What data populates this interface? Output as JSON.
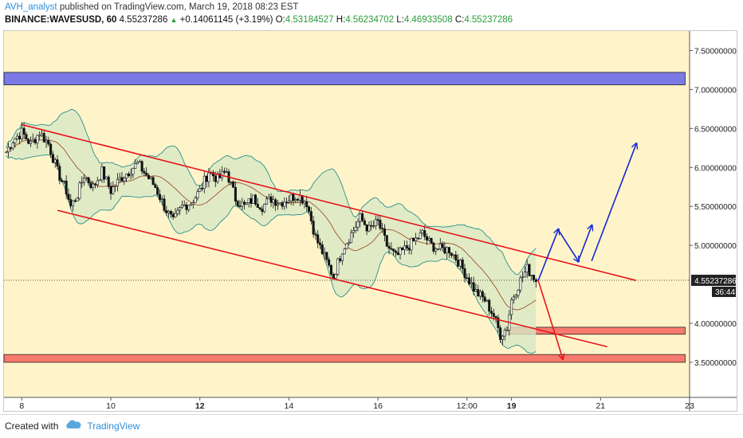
{
  "header": {
    "user": "AVH_analyst",
    "published_text": "published on TradingView.com, March 19, 2018 08:23 EST",
    "symbol": "BINANCE:WAVESUSD, 60",
    "last": "4.55237286",
    "change": "+0.14061145 (+3.19%)",
    "o_label": "O:",
    "o_value": "4.53184527",
    "h_label": "H:",
    "h_value": "4.56234702",
    "l_label": "L:",
    "l_value": "4.46933508",
    "c_label": "C:",
    "c_value": "4.55237286"
  },
  "footer": {
    "created_with": "Created with",
    "brand": "TradingView"
  },
  "colors": {
    "plot_bg": "#fff4c9",
    "candle": "#111111",
    "channel": "#e8141c",
    "bollinger": "#2a8f8c",
    "bollinger_fill": "#d8e8c4",
    "ma": "#a0522d",
    "resistance_zone": "#7b79e6",
    "support_zone": "#f87a6e",
    "projection_up": "#1526d8",
    "projection_down": "#e8141c",
    "price_label_bg": "#222222"
  },
  "chart_data": {
    "type": "candlestick",
    "y_axis_side": "right",
    "ylim": [
      3.05,
      7.75
    ],
    "y_ticks": [
      "7.50000000",
      "7.00000000",
      "6.50000000",
      "6.00000000",
      "5.50000000",
      "5.00000000",
      "4.00000000",
      "3.50000000"
    ],
    "y_tick_values": [
      7.5,
      7.0,
      6.5,
      6.0,
      5.5,
      5.0,
      4.0,
      3.5
    ],
    "x_range": [
      7.6,
      23.0
    ],
    "x_ticks": [
      {
        "x": 8,
        "label": "8",
        "bold": false
      },
      {
        "x": 10,
        "label": "10",
        "bold": false
      },
      {
        "x": 12,
        "label": "12",
        "bold": true
      },
      {
        "x": 14,
        "label": "14",
        "bold": false
      },
      {
        "x": 16,
        "label": "16",
        "bold": false
      },
      {
        "x": 18,
        "label": "12:00",
        "bold": false
      },
      {
        "x": 19,
        "label": "19",
        "bold": true
      },
      {
        "x": 21,
        "label": "21",
        "bold": false
      },
      {
        "x": 23,
        "label": "23",
        "bold": false
      }
    ],
    "grid": false,
    "last_price": {
      "value": 4.55237286,
      "label": "4.55237286",
      "countdown": "36:44"
    },
    "close_path": [
      [
        7.65,
        6.2
      ],
      [
        7.8,
        6.35
      ],
      [
        8.0,
        6.45
      ],
      [
        8.2,
        6.3
      ],
      [
        8.4,
        6.45
      ],
      [
        8.6,
        6.3
      ],
      [
        8.8,
        5.95
      ],
      [
        9.0,
        5.7
      ],
      [
        9.1,
        5.5
      ],
      [
        9.25,
        5.65
      ],
      [
        9.4,
        5.9
      ],
      [
        9.6,
        5.75
      ],
      [
        9.8,
        5.95
      ],
      [
        10.0,
        5.7
      ],
      [
        10.2,
        5.85
      ],
      [
        10.4,
        5.95
      ],
      [
        10.6,
        6.05
      ],
      [
        10.8,
        5.9
      ],
      [
        11.0,
        5.75
      ],
      [
        11.2,
        5.5
      ],
      [
        11.4,
        5.3
      ],
      [
        11.6,
        5.5
      ],
      [
        11.8,
        5.55
      ],
      [
        12.0,
        5.7
      ],
      [
        12.2,
        5.95
      ],
      [
        12.4,
        5.85
      ],
      [
        12.6,
        5.95
      ],
      [
        12.8,
        5.6
      ],
      [
        13.0,
        5.5
      ],
      [
        13.2,
        5.6
      ],
      [
        13.4,
        5.5
      ],
      [
        13.6,
        5.6
      ],
      [
        13.8,
        5.55
      ],
      [
        14.0,
        5.6
      ],
      [
        14.2,
        5.65
      ],
      [
        14.4,
        5.55
      ],
      [
        14.6,
        5.1
      ],
      [
        14.8,
        4.85
      ],
      [
        15.0,
        4.6
      ],
      [
        15.2,
        4.95
      ],
      [
        15.4,
        5.15
      ],
      [
        15.6,
        5.35
      ],
      [
        15.8,
        5.2
      ],
      [
        16.0,
        5.3
      ],
      [
        16.2,
        5.0
      ],
      [
        16.4,
        4.85
      ],
      [
        16.6,
        4.95
      ],
      [
        16.8,
        5.05
      ],
      [
        17.0,
        5.15
      ],
      [
        17.2,
        5.0
      ],
      [
        17.4,
        4.95
      ],
      [
        17.6,
        4.95
      ],
      [
        17.8,
        4.8
      ],
      [
        18.0,
        4.6
      ],
      [
        18.2,
        4.4
      ],
      [
        18.4,
        4.3
      ],
      [
        18.6,
        4.1
      ],
      [
        18.75,
        3.85
      ],
      [
        18.9,
        3.95
      ],
      [
        19.0,
        4.3
      ],
      [
        19.2,
        4.55
      ],
      [
        19.35,
        4.7
      ],
      [
        19.5,
        4.6
      ],
      [
        19.55,
        4.55
      ]
    ],
    "channel_lines": [
      {
        "name": "upper",
        "from": [
          8.0,
          6.55
        ],
        "to": [
          21.8,
          4.55
        ]
      },
      {
        "name": "lower",
        "from": [
          8.8,
          5.45
        ],
        "to": [
          21.15,
          3.7
        ]
      }
    ],
    "zones": [
      {
        "name": "resistance",
        "y_top": 7.22,
        "y_bottom": 7.06,
        "x_from": 7.6,
        "x_to": 22.9
      },
      {
        "name": "support",
        "y_top": 3.95,
        "y_bottom": 3.86,
        "x_from": 18.85,
        "x_to": 22.9
      },
      {
        "name": "support-low",
        "y_top": 3.6,
        "y_bottom": 3.5,
        "x_from": 7.6,
        "x_to": 22.9
      }
    ],
    "projections": [
      {
        "name": "bullish",
        "points": [
          [
            19.6,
            4.55
          ],
          [
            20.05,
            5.2
          ],
          [
            20.5,
            4.8
          ],
          [
            20.8,
            5.25
          ]
        ]
      },
      {
        "name": "bullish-2",
        "points": [
          [
            20.8,
            4.8
          ],
          [
            21.8,
            6.3
          ]
        ]
      },
      {
        "name": "bearish",
        "points": [
          [
            19.6,
            4.55
          ],
          [
            20.15,
            3.55
          ]
        ]
      }
    ]
  }
}
